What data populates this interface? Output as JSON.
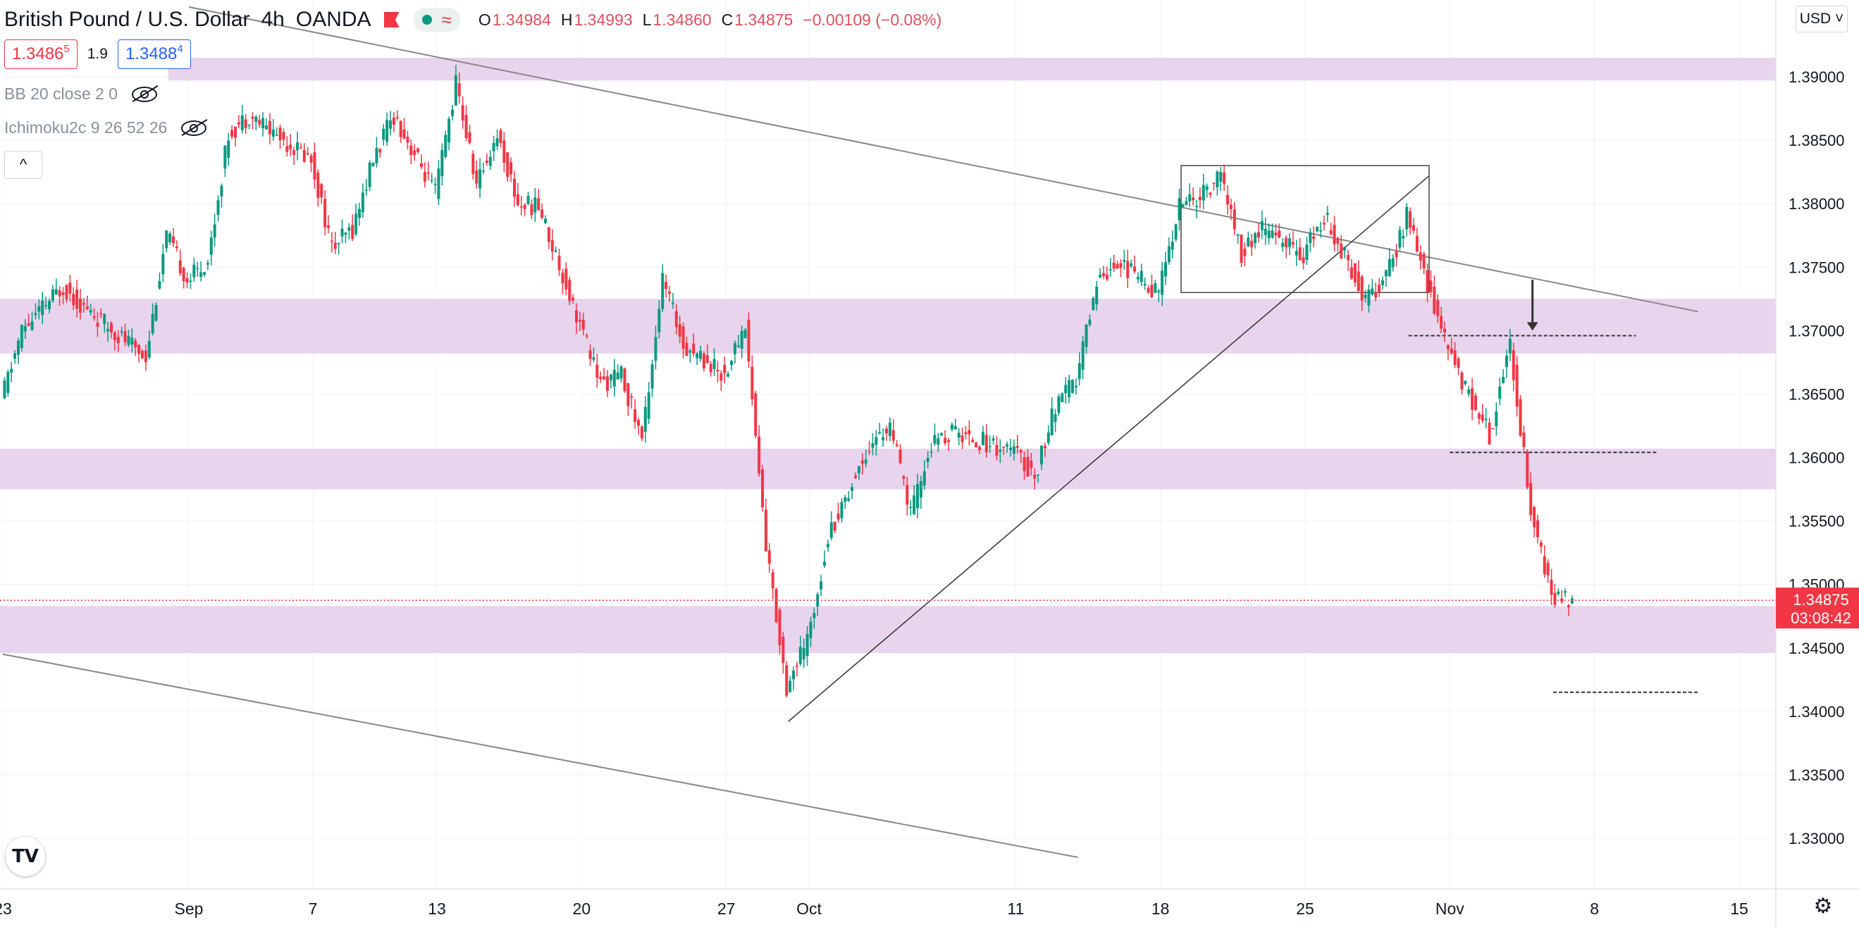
{
  "header": {
    "symbol": "British Pound / U.S. Dollar",
    "interval": "4h",
    "exchange": "OANDA",
    "ohlc": {
      "o_label": "O",
      "o": "1.34984",
      "h_label": "H",
      "h": "1.34993",
      "l_label": "L",
      "l": "1.34860",
      "c_label": "C",
      "c": "1.34875",
      "change": "−0.00109 (−0.08%)"
    }
  },
  "quotes": {
    "sell_main": "1.3486",
    "sell_sup": "5",
    "spread": "1.9",
    "buy_main": "1.3488",
    "buy_sup": "4"
  },
  "indicators": [
    {
      "label": "BB 20 close 2 0"
    },
    {
      "label": "Ichimoku2c 9 26 52 26"
    }
  ],
  "controls": {
    "collapse_label": "^",
    "currency": "USD",
    "logo_text": "TV",
    "settings_icon": "gear-icon"
  },
  "colors": {
    "up": "#089981",
    "down": "#f23645",
    "zone": "#e4cdea",
    "price_tag": "#f23645"
  },
  "chart_data": {
    "type": "candlestick",
    "interval": "4h",
    "y_ticks": [
      "1.39000",
      "1.38500",
      "1.38000",
      "1.37500",
      "1.37000",
      "1.36500",
      "1.36000",
      "1.35500",
      "1.35000",
      "1.34500",
      "1.34000",
      "1.33500",
      "1.33000"
    ],
    "x_ticks": [
      {
        "label": "23",
        "date": "2021-08-23"
      },
      {
        "label": "Sep",
        "date": "2021-09-01"
      },
      {
        "label": "7",
        "date": "2021-09-07"
      },
      {
        "label": "13",
        "date": "2021-09-13"
      },
      {
        "label": "20",
        "date": "2021-09-20"
      },
      {
        "label": "27",
        "date": "2021-09-27"
      },
      {
        "label": "Oct",
        "date": "2021-10-01"
      },
      {
        "label": "11",
        "date": "2021-10-11"
      },
      {
        "label": "18",
        "date": "2021-10-18"
      },
      {
        "label": "25",
        "date": "2021-10-25"
      },
      {
        "label": "Nov",
        "date": "2021-11-01"
      },
      {
        "label": "8",
        "date": "2021-11-08"
      },
      {
        "label": "15",
        "date": "2021-11-15"
      }
    ],
    "ylim": [
      1.3275,
      1.393
    ],
    "grid": true,
    "last_price": "1.34875",
    "countdown": "03:08:42",
    "anchors": [
      {
        "date": "2021-08-23",
        "close": 1.3645
      },
      {
        "date": "2021-08-24",
        "close": 1.37
      },
      {
        "date": "2021-08-26",
        "close": 1.3735
      },
      {
        "date": "2021-08-27",
        "close": 1.3718
      },
      {
        "date": "2021-08-30",
        "close": 1.368
      },
      {
        "date": "2021-08-31",
        "close": 1.3775
      },
      {
        "date": "2021-09-01",
        "close": 1.374
      },
      {
        "date": "2021-09-02",
        "close": 1.3755
      },
      {
        "date": "2021-09-03",
        "close": 1.3855
      },
      {
        "date": "2021-09-04",
        "close": 1.387
      },
      {
        "date": "2021-09-07",
        "close": 1.3835
      },
      {
        "date": "2021-09-08",
        "close": 1.3765
      },
      {
        "date": "2021-09-09",
        "close": 1.378
      },
      {
        "date": "2021-09-10",
        "close": 1.3835
      },
      {
        "date": "2021-09-11",
        "close": 1.387
      },
      {
        "date": "2021-09-13",
        "close": 1.3808
      },
      {
        "date": "2021-09-14",
        "close": 1.3895
      },
      {
        "date": "2021-09-15",
        "close": 1.3815
      },
      {
        "date": "2021-09-16",
        "close": 1.3855
      },
      {
        "date": "2021-09-17",
        "close": 1.38
      },
      {
        "date": "2021-09-18",
        "close": 1.3798
      },
      {
        "date": "2021-09-20",
        "close": 1.3705
      },
      {
        "date": "2021-09-21",
        "close": 1.3658
      },
      {
        "date": "2021-09-22",
        "close": 1.3665
      },
      {
        "date": "2021-09-23",
        "close": 1.3615
      },
      {
        "date": "2021-09-24",
        "close": 1.374
      },
      {
        "date": "2021-09-25",
        "close": 1.369
      },
      {
        "date": "2021-09-27",
        "close": 1.3665
      },
      {
        "date": "2021-09-28",
        "close": 1.3705
      },
      {
        "date": "2021-09-29",
        "close": 1.353
      },
      {
        "date": "2021-09-30",
        "close": 1.342
      },
      {
        "date": "2021-10-01",
        "close": 1.3455
      },
      {
        "date": "2021-10-02",
        "close": 1.3538
      },
      {
        "date": "2021-10-04",
        "close": 1.361
      },
      {
        "date": "2021-10-05",
        "close": 1.3625
      },
      {
        "date": "2021-10-06",
        "close": 1.3555
      },
      {
        "date": "2021-10-07",
        "close": 1.361
      },
      {
        "date": "2021-10-08",
        "close": 1.362
      },
      {
        "date": "2021-10-11",
        "close": 1.3605
      },
      {
        "date": "2021-10-12",
        "close": 1.3585
      },
      {
        "date": "2021-10-13",
        "close": 1.364
      },
      {
        "date": "2021-10-14",
        "close": 1.366
      },
      {
        "date": "2021-10-15",
        "close": 1.374
      },
      {
        "date": "2021-10-16",
        "close": 1.3755
      },
      {
        "date": "2021-10-18",
        "close": 1.373
      },
      {
        "date": "2021-10-19",
        "close": 1.38
      },
      {
        "date": "2021-10-20",
        "close": 1.3805
      },
      {
        "date": "2021-10-21",
        "close": 1.3822
      },
      {
        "date": "2021-10-22",
        "close": 1.376
      },
      {
        "date": "2021-10-23",
        "close": 1.378
      },
      {
        "date": "2021-10-25",
        "close": 1.376
      },
      {
        "date": "2021-10-26",
        "close": 1.379
      },
      {
        "date": "2021-10-27",
        "close": 1.376
      },
      {
        "date": "2021-10-28",
        "close": 1.3725
      },
      {
        "date": "2021-10-29",
        "close": 1.374
      },
      {
        "date": "2021-10-30",
        "close": 1.379
      },
      {
        "date": "2021-11-01",
        "close": 1.3685
      },
      {
        "date": "2021-11-02",
        "close": 1.365
      },
      {
        "date": "2021-11-03",
        "close": 1.3618
      },
      {
        "date": "2021-11-04",
        "close": 1.369
      },
      {
        "date": "2021-11-05",
        "close": 1.356
      },
      {
        "date": "2021-11-06",
        "close": 1.3489
      },
      {
        "date": "2021-11-07",
        "close": 1.34875
      }
    ],
    "zones": [
      {
        "from": 1.3897,
        "to": 1.3915
      },
      {
        "from": 1.3682,
        "to": 1.3725
      },
      {
        "from": 1.3575,
        "to": 1.3607
      },
      {
        "from": 1.3446,
        "to": 1.3483
      }
    ],
    "consolidation_box": {
      "from_date": "2021-10-19",
      "to_date": "2021-10-31",
      "low": 1.373,
      "high": 1.383
    },
    "trend_lines": [
      {
        "from_date": "2021-09-01",
        "from_price": 1.3955,
        "to_date": "2021-11-13",
        "to_price": 1.3715
      },
      {
        "from_date": "2021-08-23",
        "from_price": 1.3445,
        "to_date": "2021-10-14",
        "to_price": 1.3285
      },
      {
        "from_date": "2021-09-30",
        "from_price": 1.3392,
        "to_date": "2021-10-31",
        "to_price": 1.3822
      }
    ],
    "dashed_levels": [
      {
        "price": 1.3696,
        "from_date": "2021-10-30",
        "to_date": "2021-11-10"
      },
      {
        "price": 1.3604,
        "from_date": "2021-11-01",
        "to_date": "2021-11-11"
      },
      {
        "price": 1.3415,
        "from_date": "2021-11-06",
        "to_date": "2021-11-13"
      }
    ],
    "arrow": {
      "date": "2021-11-05",
      "price_top": 1.374,
      "price_tip": 1.37
    }
  }
}
